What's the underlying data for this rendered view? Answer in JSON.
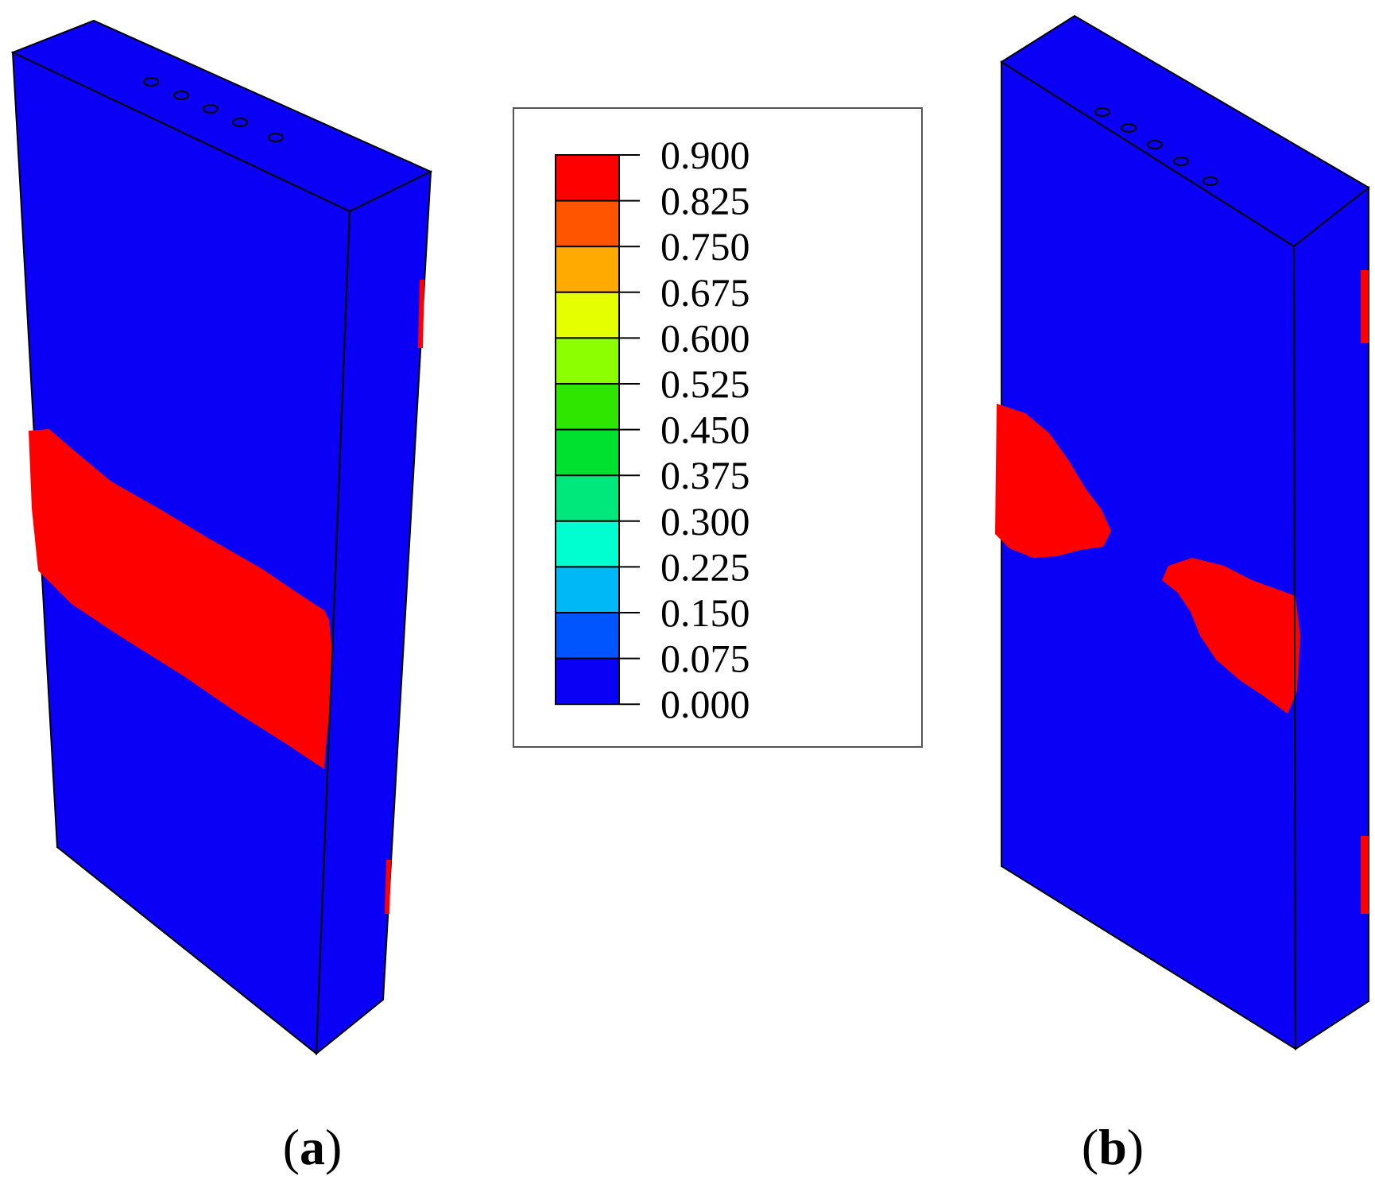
{
  "colors": {
    "undamaged": "#0a00f5",
    "damaged": "#ff0000",
    "edge": "#000000"
  },
  "legend": {
    "ticks": [
      "0.900",
      "0.825",
      "0.750",
      "0.675",
      "0.600",
      "0.525",
      "0.450",
      "0.375",
      "0.300",
      "0.225",
      "0.150",
      "0.075",
      "0.000"
    ],
    "bands": [
      "#ff0000",
      "#ff5500",
      "#ffaa00",
      "#e6ff00",
      "#8cff00",
      "#2ee600",
      "#00e02e",
      "#00e87c",
      "#00ffd0",
      "#00b8f5",
      "#0055ff",
      "#0a00f5"
    ]
  },
  "panels": [
    {
      "caption_open": "(",
      "caption_letter": "a",
      "caption_close": ")"
    },
    {
      "caption_open": "(",
      "caption_letter": "b",
      "caption_close": ")"
    }
  ]
}
